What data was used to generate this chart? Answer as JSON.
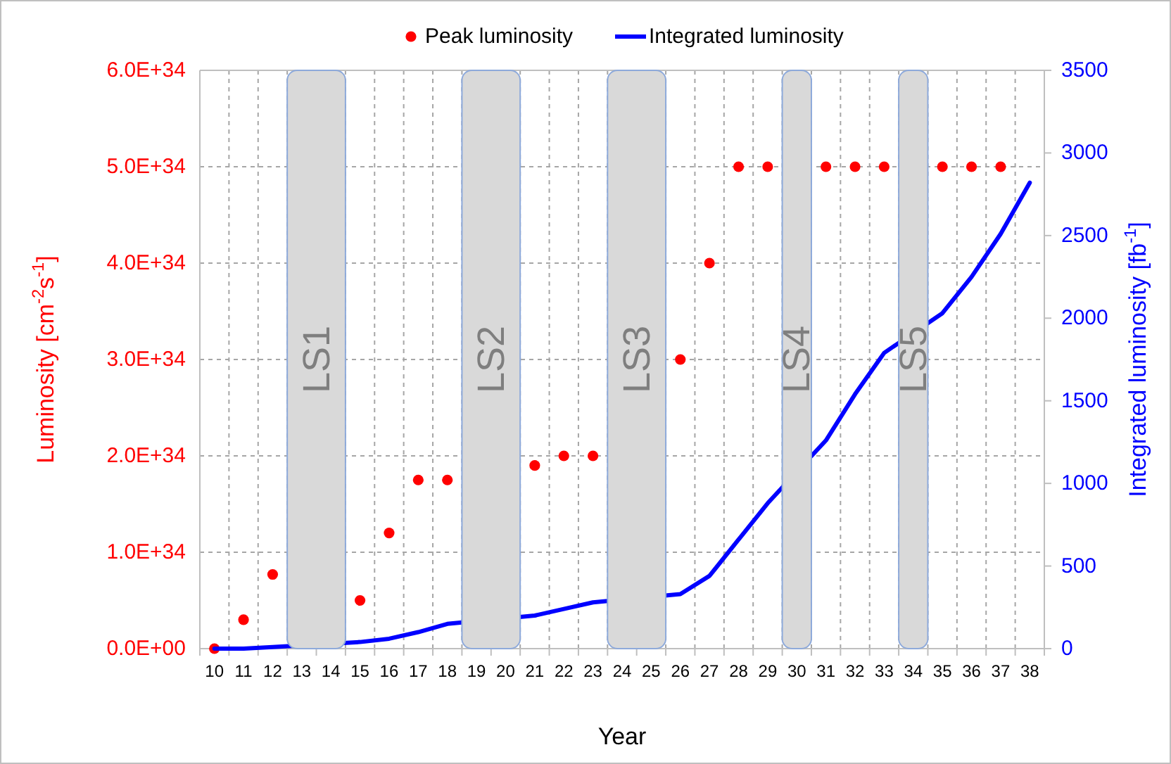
{
  "chart_data": {
    "type": "line",
    "xlabel": "Year",
    "ylabel": "Luminosity [cm$^{-2}$s$^{-1}$]",
    "y2label": "Integrated luminosity [fb$^{-1}$]",
    "categories": [
      "10",
      "11",
      "12",
      "13",
      "14",
      "15",
      "16",
      "17",
      "18",
      "19",
      "20",
      "21",
      "22",
      "23",
      "24",
      "25",
      "26",
      "27",
      "28",
      "29",
      "30",
      "31",
      "32",
      "33",
      "34",
      "35",
      "36",
      "37",
      "38"
    ],
    "series": [
      {
        "name": "Peak luminosity",
        "type": "scatter",
        "marker": "circle",
        "color": "#ff0000",
        "values": [
          0,
          3e+33,
          7.7e+33,
          null,
          null,
          5e+33,
          1.2e+34,
          1.75e+34,
          1.75e+34,
          null,
          null,
          1.9e+34,
          2e+34,
          2e+34,
          null,
          null,
          3e+34,
          4e+34,
          5e+34,
          5e+34,
          null,
          5e+34,
          5e+34,
          5e+34,
          null,
          5e+34,
          5e+34,
          5e+34,
          null
        ]
      },
      {
        "name": "Integrated luminosity",
        "axis": "y2",
        "color": "#0000ff",
        "values": [
          0,
          0,
          10,
          null,
          null,
          40,
          60,
          100,
          150,
          null,
          null,
          200,
          240,
          280,
          null,
          null,
          330,
          440,
          660,
          880,
          null,
          1260,
          1540,
          1790,
          null,
          2030,
          2250,
          2510,
          2820
        ]
      }
    ],
    "ylim": [
      0,
      6e+34
    ],
    "yticks": [
      {
        "value": 0,
        "label": "0.0E+00"
      },
      {
        "value": 1e+34,
        "label": "1.0E+34"
      },
      {
        "value": 2e+34,
        "label": "2.0E+34"
      },
      {
        "value": 3e+34,
        "label": "3.0E+34"
      },
      {
        "value": 4e+34,
        "label": "4.0E+34"
      },
      {
        "value": 5e+34,
        "label": "5.0E+34"
      },
      {
        "value": 6e+34,
        "label": "6.0E+34"
      }
    ],
    "y2lim": [
      0,
      3500
    ],
    "y2ticks": [
      0,
      500,
      1000,
      1500,
      2000,
      2500,
      3000,
      3500
    ],
    "bands": [
      {
        "axis": "x",
        "from": "13",
        "to": "14",
        "label": "LS1",
        "color": "#d9d9d9"
      },
      {
        "axis": "x",
        "from": "19",
        "to": "20",
        "label": "LS2",
        "color": "#d9d9d9"
      },
      {
        "axis": "x",
        "from": "24",
        "to": "25",
        "label": "LS3",
        "color": "#d9d9d9"
      },
      {
        "axis": "x",
        "from": "30",
        "to": "30",
        "label": "LS4",
        "color": "#d9d9d9"
      },
      {
        "axis": "x",
        "from": "34",
        "to": "34",
        "label": "LS5",
        "color": "#d9d9d9"
      }
    ],
    "grid": true,
    "legend": "top",
    "line_style": "solid"
  }
}
